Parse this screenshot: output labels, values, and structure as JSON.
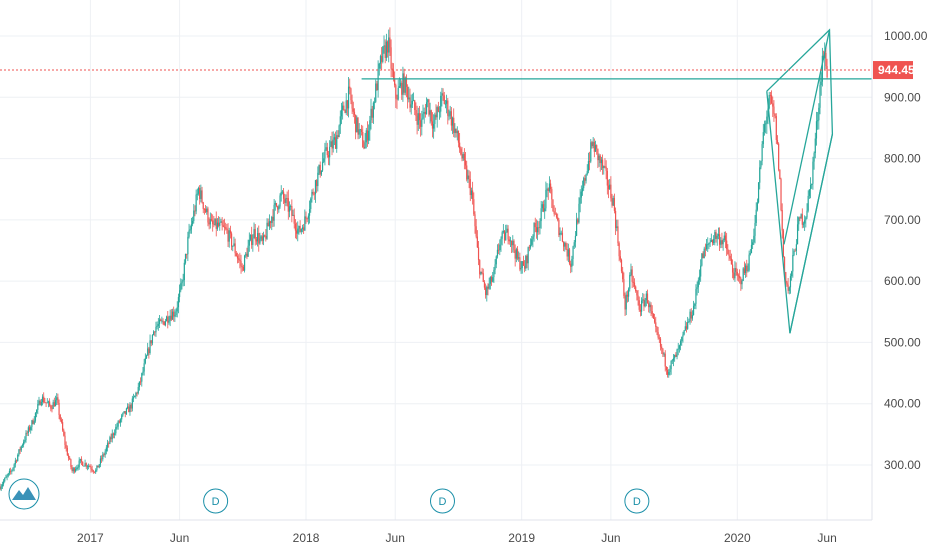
{
  "chart_data": {
    "type": "candlestick",
    "y_ticks": [
      "1000.00",
      "900.00",
      "800.00",
      "700.00",
      "600.00",
      "500.00",
      "400.00",
      "300.00"
    ],
    "ylim": [
      240,
      1020
    ],
    "x_ticks": [
      {
        "label": "2017",
        "date": "2017-01-01"
      },
      {
        "label": "Jun",
        "date": "2017-06-01"
      },
      {
        "label": "2018",
        "date": "2018-01-01"
      },
      {
        "label": "Jun",
        "date": "2018-06-01"
      },
      {
        "label": "2019",
        "date": "2019-01-01"
      },
      {
        "label": "Jun",
        "date": "2019-06-01"
      },
      {
        "label": "2020",
        "date": "2020-01-01"
      },
      {
        "label": "Jun",
        "date": "2020-06-01"
      }
    ],
    "xlim": [
      "2016-08-01",
      "2020-08-16"
    ],
    "last_price": {
      "label": "944.45",
      "value": 944.45,
      "color": "#ef5350"
    },
    "colors": {
      "up": "#26a69a",
      "down": "#ef5350",
      "drawing": "#26a69a",
      "marker": "#1a8fa8"
    },
    "price_path": [
      [
        "2016-08-01",
        265
      ],
      [
        "2016-08-20",
        290
      ],
      [
        "2016-09-10",
        340
      ],
      [
        "2016-09-25",
        370
      ],
      [
        "2016-10-10",
        410
      ],
      [
        "2016-10-25",
        395
      ],
      [
        "2016-11-05",
        405
      ],
      [
        "2016-11-20",
        330
      ],
      [
        "2016-12-01",
        290
      ],
      [
        "2016-12-15",
        305
      ],
      [
        "2016-12-28",
        300
      ],
      [
        "2017-01-10",
        290
      ],
      [
        "2017-01-25",
        320
      ],
      [
        "2017-02-10",
        355
      ],
      [
        "2017-02-25",
        380
      ],
      [
        "2017-03-10",
        395
      ],
      [
        "2017-03-25",
        430
      ],
      [
        "2017-04-10",
        490
      ],
      [
        "2017-04-20",
        525
      ],
      [
        "2017-05-01",
        530
      ],
      [
        "2017-05-15",
        545
      ],
      [
        "2017-05-25",
        550
      ],
      [
        "2017-06-05",
        595
      ],
      [
        "2017-06-15",
        665
      ],
      [
        "2017-06-25",
        710
      ],
      [
        "2017-07-03",
        750
      ],
      [
        "2017-07-15",
        715
      ],
      [
        "2017-07-25",
        690
      ],
      [
        "2017-08-05",
        690
      ],
      [
        "2017-08-20",
        680
      ],
      [
        "2017-09-01",
        655
      ],
      [
        "2017-09-15",
        620
      ],
      [
        "2017-09-25",
        655
      ],
      [
        "2017-10-05",
        680
      ],
      [
        "2017-10-20",
        660
      ],
      [
        "2017-11-01",
        700
      ],
      [
        "2017-11-20",
        740
      ],
      [
        "2017-12-05",
        715
      ],
      [
        "2017-12-20",
        680
      ],
      [
        "2017-12-31",
        700
      ],
      [
        "2018-01-15",
        755
      ],
      [
        "2018-01-31",
        800
      ],
      [
        "2018-02-20",
        830
      ],
      [
        "2018-03-05",
        880
      ],
      [
        "2018-03-15",
        905
      ],
      [
        "2018-03-25",
        860
      ],
      [
        "2018-04-10",
        820
      ],
      [
        "2018-04-25",
        890
      ],
      [
        "2018-05-08",
        960
      ],
      [
        "2018-05-20",
        990
      ],
      [
        "2018-06-01",
        900
      ],
      [
        "2018-06-15",
        925
      ],
      [
        "2018-07-01",
        885
      ],
      [
        "2018-07-15",
        855
      ],
      [
        "2018-07-25",
        895
      ],
      [
        "2018-08-05",
        855
      ],
      [
        "2018-08-20",
        900
      ],
      [
        "2018-09-01",
        875
      ],
      [
        "2018-09-15",
        830
      ],
      [
        "2018-09-25",
        790
      ],
      [
        "2018-10-08",
        745
      ],
      [
        "2018-10-20",
        630
      ],
      [
        "2018-11-01",
        580
      ],
      [
        "2018-11-15",
        610
      ],
      [
        "2018-11-25",
        665
      ],
      [
        "2018-12-10",
        680
      ],
      [
        "2018-12-25",
        635
      ],
      [
        "2019-01-05",
        620
      ],
      [
        "2019-01-20",
        680
      ],
      [
        "2019-02-01",
        700
      ],
      [
        "2019-02-15",
        755
      ],
      [
        "2019-02-28",
        700
      ],
      [
        "2019-03-15",
        660
      ],
      [
        "2019-03-25",
        630
      ],
      [
        "2019-04-05",
        700
      ],
      [
        "2019-04-20",
        780
      ],
      [
        "2019-05-01",
        825
      ],
      [
        "2019-05-20",
        780
      ],
      [
        "2019-06-05",
        730
      ],
      [
        "2019-06-15",
        650
      ],
      [
        "2019-06-25",
        560
      ],
      [
        "2019-07-05",
        610
      ],
      [
        "2019-07-20",
        555
      ],
      [
        "2019-08-01",
        575
      ],
      [
        "2019-08-15",
        520
      ],
      [
        "2019-08-25",
        490
      ],
      [
        "2019-09-05",
        455
      ],
      [
        "2019-09-15",
        470
      ],
      [
        "2019-09-25",
        490
      ],
      [
        "2019-10-05",
        520
      ],
      [
        "2019-10-20",
        560
      ],
      [
        "2019-11-01",
        635
      ],
      [
        "2019-11-15",
        665
      ],
      [
        "2019-11-25",
        675
      ],
      [
        "2019-12-10",
        665
      ],
      [
        "2019-12-25",
        615
      ],
      [
        "2020-01-05",
        600
      ],
      [
        "2020-01-20",
        630
      ],
      [
        "2020-02-01",
        700
      ],
      [
        "2020-02-15",
        850
      ],
      [
        "2020-02-25",
        895
      ],
      [
        "2020-03-05",
        860
      ],
      [
        "2020-03-12",
        780
      ],
      [
        "2020-03-20",
        620
      ],
      [
        "2020-03-28",
        580
      ],
      [
        "2020-04-05",
        640
      ],
      [
        "2020-04-15",
        700
      ],
      [
        "2020-04-25",
        705
      ],
      [
        "2020-05-05",
        760
      ],
      [
        "2020-05-15",
        860
      ],
      [
        "2020-05-25",
        975
      ],
      [
        "2020-06-01",
        944.45
      ]
    ],
    "drawings": [
      {
        "type": "line",
        "points": [
          [
            "2018-04-05",
            930
          ],
          [
            "2020-08-16",
            930
          ]
        ]
      },
      {
        "type": "line",
        "points": [
          [
            "2020-02-20",
            910
          ],
          [
            "2020-03-30",
            515
          ],
          [
            "2020-06-10",
            840
          ],
          [
            "2020-06-05",
            1010
          ],
          [
            "2020-02-20",
            910
          ]
        ]
      },
      {
        "type": "line",
        "points": [
          [
            "2020-03-20",
            660
          ],
          [
            "2020-06-05",
            1010
          ]
        ]
      },
      {
        "type": "line",
        "points": [
          [
            "2020-03-30",
            515
          ],
          [
            "2020-06-10",
            840
          ]
        ]
      }
    ],
    "dividend_markers": [
      {
        "label": "D",
        "date": "2017-08-01"
      },
      {
        "label": "D",
        "date": "2018-08-20"
      },
      {
        "label": "D",
        "date": "2019-07-15"
      }
    ]
  }
}
